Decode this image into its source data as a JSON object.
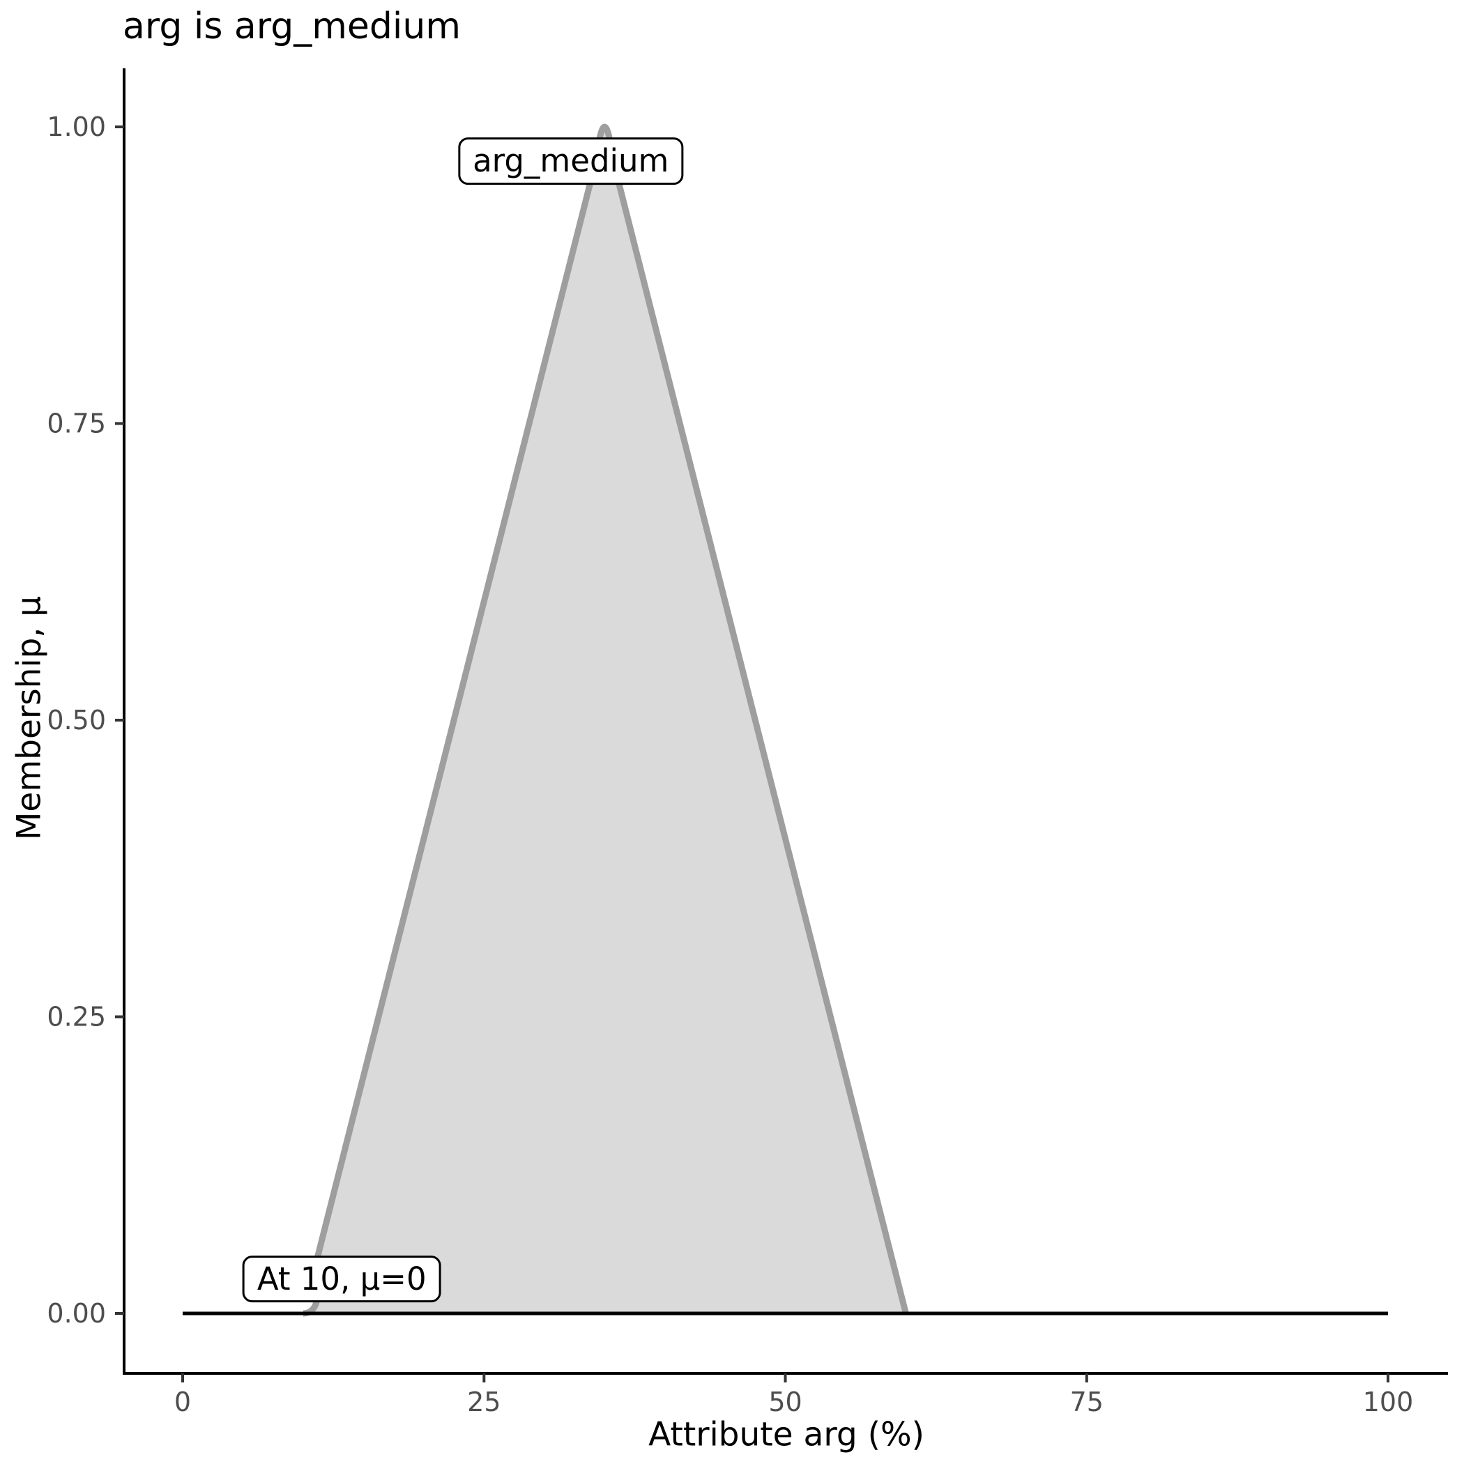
{
  "chart_data": {
    "type": "area",
    "title": "arg is arg_medium",
    "xlabel": "Attribute arg (%)",
    "ylabel": "Membership, μ",
    "xlim": [
      0,
      100
    ],
    "ylim": [
      0,
      1
    ],
    "x_ticks": [
      0,
      25,
      50,
      75,
      100
    ],
    "y_ticks": [
      {
        "v": 0.0,
        "label": "0.00"
      },
      {
        "v": 0.25,
        "label": "0.25"
      },
      {
        "v": 0.5,
        "label": "0.50"
      },
      {
        "v": 0.75,
        "label": "0.75"
      },
      {
        "v": 1.0,
        "label": "1.00"
      }
    ],
    "grid": false,
    "legend": false,
    "series": [
      {
        "name": "arg_medium",
        "type": "membership-function-smoothed-triangle",
        "points": [
          {
            "x": 10,
            "mu": 0
          },
          {
            "x": 35,
            "mu": 1
          },
          {
            "x": 60,
            "mu": 0
          }
        ],
        "stroke": "#9E9E9E",
        "fill": "#DADADA"
      },
      {
        "name": "zero-baseline",
        "type": "line",
        "points": [
          {
            "x": 0,
            "mu": 0
          },
          {
            "x": 100,
            "mu": 0
          }
        ],
        "stroke": "#000000"
      }
    ],
    "annotations": [
      {
        "text": "arg_medium",
        "x": 32.2,
        "mu": 0.971
      },
      {
        "text": "At 10, μ=0",
        "x": 13.2,
        "mu": 0.029
      }
    ],
    "colors": {
      "axis": "#000000",
      "tick": "#333333",
      "tick_label": "#4D4D4D",
      "text": "#000000"
    }
  }
}
